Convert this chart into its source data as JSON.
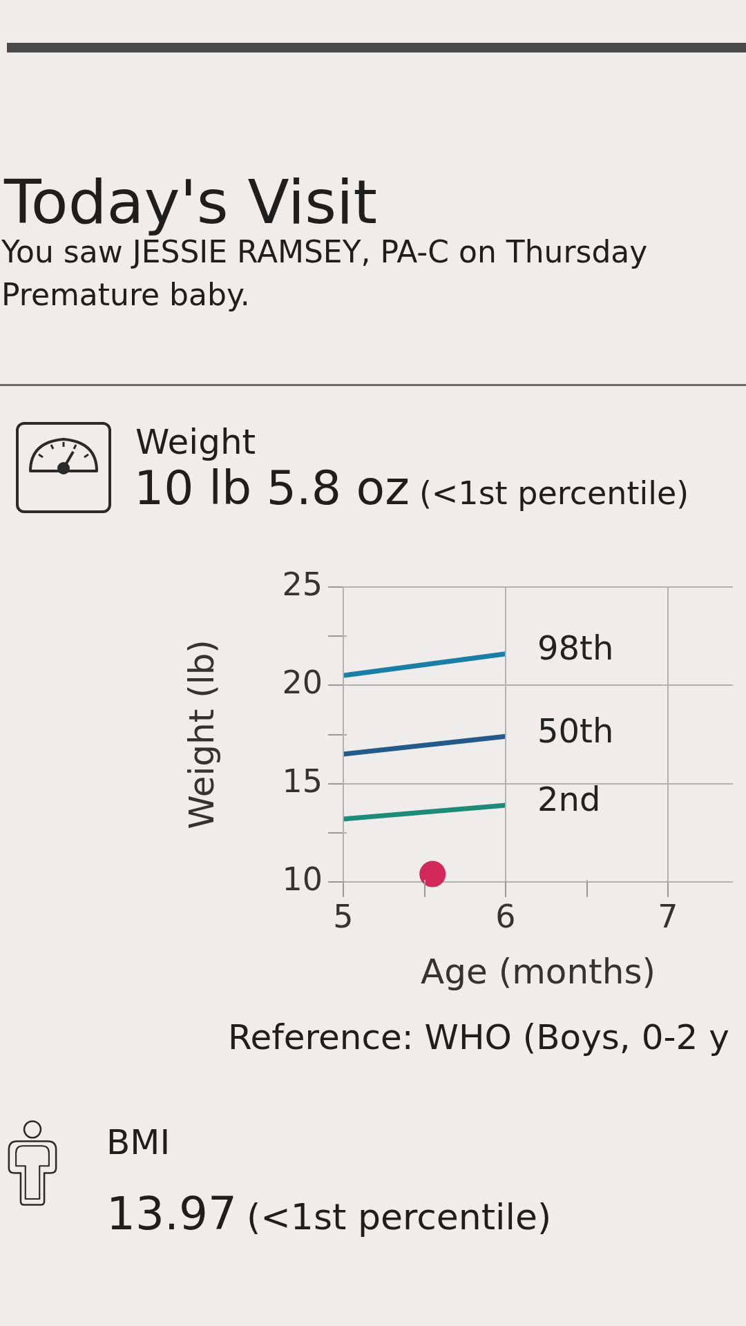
{
  "chart_data": {
    "type": "line",
    "title": "Today's Visit",
    "subtitle": "You saw JESSIE RAMSEY, PA-C on Thursday",
    "annotations": [
      "Premature baby.",
      "Weight",
      "10 lb 5.8 oz",
      "(<1st percentile)",
      "Reference: WHO (Boys, 0-2 y",
      "BMI",
      "13.97",
      "(<1st percentile)"
    ],
    "xlabel": "Age (months)",
    "ylabel": "Weight (lb)",
    "series": [
      {
        "name": "98th",
        "type": "line",
        "marker": "none",
        "color": "#1b7ea6",
        "x": [
          5,
          6
        ],
        "values": [
          20.5,
          21.6
        ]
      },
      {
        "name": "50th",
        "type": "line",
        "marker": "none",
        "color": "#235a8c",
        "x": [
          5,
          6
        ],
        "values": [
          16.5,
          17.4
        ]
      },
      {
        "name": "2nd",
        "type": "line",
        "marker": "none",
        "color": "#1e8a78",
        "x": [
          5,
          6
        ],
        "values": [
          13.2,
          13.9
        ]
      },
      {
        "type": "scatter",
        "marker": "circle",
        "color": "#d0285a",
        "x": [
          5.55
        ],
        "values": [
          10.4
        ]
      }
    ],
    "xlim": [
      5,
      7.4
    ],
    "ylim": [
      10,
      25
    ],
    "xticks": [
      5,
      {
        "value": 5.5,
        "label": null
      },
      6,
      {
        "value": 6.5,
        "label": null
      },
      7
    ],
    "yticks": [
      10,
      {
        "value": 12.5,
        "label": null
      },
      15,
      {
        "value": 17.5,
        "label": null
      },
      20,
      {
        "value": 22.5,
        "label": null
      },
      25
    ],
    "grid": true
  }
}
